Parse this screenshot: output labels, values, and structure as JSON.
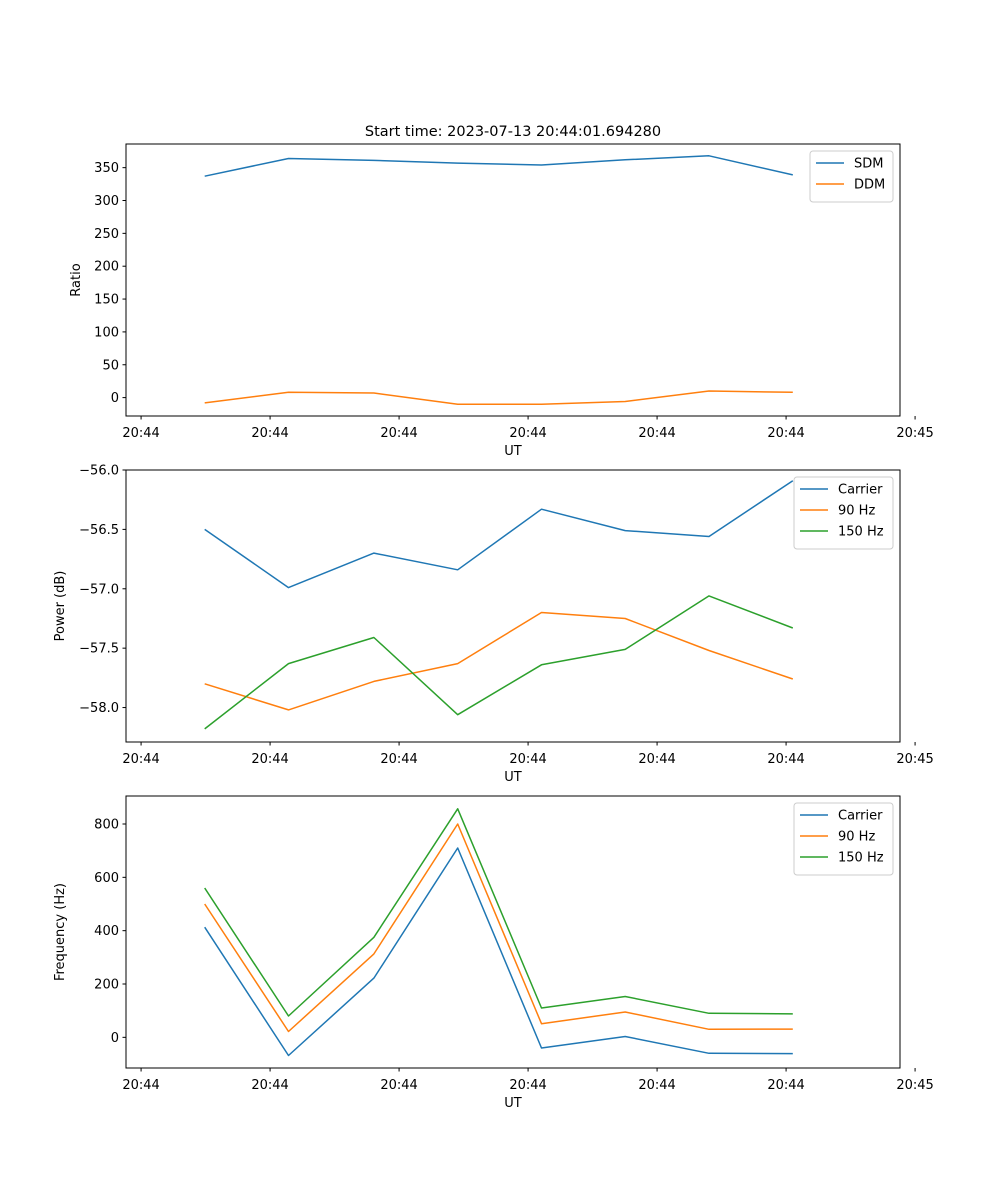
{
  "chart_data": [
    {
      "type": "line",
      "title": "Start time: 2023-07-13 20:44:01.694280",
      "xlabel": "UT",
      "ylabel": "Ratio",
      "xlim": [
        -0.09,
        4.53
      ],
      "ylim": [
        -28,
        386
      ],
      "xticks": [
        0,
        0.77,
        1.54,
        2.31,
        3.08,
        3.85,
        4.62
      ],
      "xtick_labels": [
        "20:44",
        "20:44",
        "20:44",
        "20:44",
        "20:44",
        "20:44",
        "20:45"
      ],
      "yticks": [
        0,
        50,
        100,
        150,
        200,
        250,
        300,
        350
      ],
      "ytick_labels": [
        "0",
        "50",
        "100",
        "150",
        "200",
        "250",
        "300",
        "350"
      ],
      "legend": "top-right",
      "x": [
        0.38,
        0.88,
        1.39,
        1.89,
        2.39,
        2.89,
        3.39,
        3.89
      ],
      "series": [
        {
          "name": "SDM",
          "color": "#1f77b4",
          "values": [
            337,
            364,
            361,
            357,
            354,
            362,
            368,
            339
          ]
        },
        {
          "name": "DDM",
          "color": "#ff7f0e",
          "values": [
            -8,
            8,
            7,
            -10,
            -10,
            -6,
            10,
            8
          ]
        }
      ]
    },
    {
      "type": "line",
      "title": "",
      "xlabel": "UT",
      "ylabel": "Power (dB)",
      "xlim": [
        -0.09,
        4.53
      ],
      "ylim": [
        -58.29,
        -56.0
      ],
      "xticks": [
        0,
        0.77,
        1.54,
        2.31,
        3.08,
        3.85,
        4.62
      ],
      "xtick_labels": [
        "20:44",
        "20:44",
        "20:44",
        "20:44",
        "20:44",
        "20:44",
        "20:45"
      ],
      "yticks": [
        -58.0,
        -57.5,
        -57.0,
        -56.5,
        -56.0
      ],
      "ytick_labels": [
        "−58.0",
        "−57.5",
        "−57.0",
        "−56.5",
        "−56.0"
      ],
      "legend": "top-right",
      "x": [
        0.38,
        0.88,
        1.39,
        1.89,
        2.39,
        2.89,
        3.39,
        3.89
      ],
      "series": [
        {
          "name": "Carrier",
          "color": "#1f77b4",
          "values": [
            -56.5,
            -56.99,
            -56.7,
            -56.84,
            -56.33,
            -56.51,
            -56.56,
            -56.09
          ]
        },
        {
          "name": "90 Hz",
          "color": "#ff7f0e",
          "values": [
            -57.8,
            -58.02,
            -57.78,
            -57.63,
            -57.2,
            -57.25,
            -57.52,
            -57.76
          ]
        },
        {
          "name": "150 Hz",
          "color": "#2ca02c",
          "values": [
            -58.18,
            -57.63,
            -57.41,
            -58.06,
            -57.64,
            -57.51,
            -57.06,
            -57.33
          ]
        }
      ]
    },
    {
      "type": "line",
      "title": "",
      "xlabel": "UT",
      "ylabel": "Frequency (Hz)",
      "xlim": [
        -0.09,
        4.53
      ],
      "ylim": [
        -115,
        905
      ],
      "xticks": [
        0,
        0.77,
        1.54,
        2.31,
        3.08,
        3.85,
        4.62
      ],
      "xtick_labels": [
        "20:44",
        "20:44",
        "20:44",
        "20:44",
        "20:44",
        "20:44",
        "20:45"
      ],
      "yticks": [
        0,
        200,
        400,
        600,
        800
      ],
      "ytick_labels": [
        "0",
        "200",
        "400",
        "600",
        "800"
      ],
      "legend": "top-right",
      "x": [
        0.38,
        0.88,
        1.39,
        1.89,
        2.39,
        2.89,
        3.39,
        3.89
      ],
      "series": [
        {
          "name": "Carrier",
          "color": "#1f77b4",
          "values": [
            413,
            -68,
            222,
            710,
            -40,
            3,
            -60,
            -61
          ]
        },
        {
          "name": "90 Hz",
          "color": "#ff7f0e",
          "values": [
            500,
            22,
            313,
            800,
            51,
            95,
            30,
            31
          ]
        },
        {
          "name": "150 Hz",
          "color": "#2ca02c",
          "values": [
            560,
            80,
            375,
            857,
            110,
            153,
            90,
            88
          ]
        }
      ]
    }
  ]
}
